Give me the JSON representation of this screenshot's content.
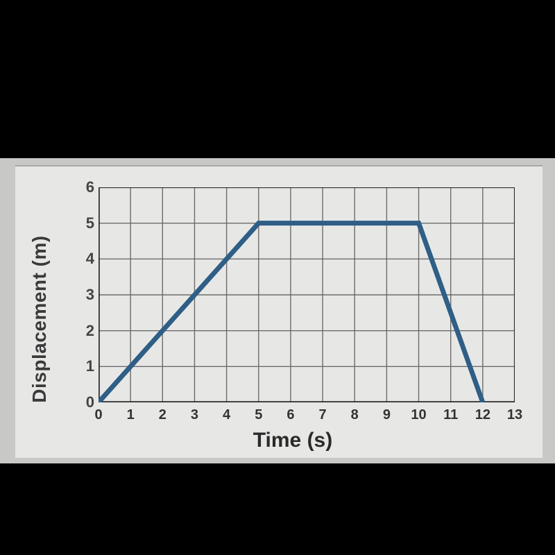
{
  "chart": {
    "type": "line",
    "xlabel": "Time (s)",
    "ylabel": "Displacement (m)",
    "label_fontsize": 28,
    "tick_fontsize": 20,
    "background_color": "#e7e8e6",
    "plot_background": "#e7e8e6",
    "grid_color": "#6b6b6b",
    "axis_color": "#2b2b2b",
    "line_color": "#2f5e86",
    "line_width": 7,
    "xlim": [
      0,
      13
    ],
    "ylim": [
      0,
      6
    ],
    "xtick_step": 1,
    "ytick_step": 1,
    "xticks": [
      "0",
      "1",
      "2",
      "3",
      "4",
      "5",
      "6",
      "7",
      "8",
      "9",
      "10",
      "11",
      "12",
      "13"
    ],
    "yticks": [
      "0",
      "1",
      "2",
      "3",
      "4",
      "5",
      "6"
    ],
    "points": [
      {
        "x": 0,
        "y": 0
      },
      {
        "x": 5,
        "y": 5
      },
      {
        "x": 10,
        "y": 5
      },
      {
        "x": 12,
        "y": 0
      }
    ]
  },
  "page": {
    "black_bg": "#000000",
    "photo_bg": "#c8c9c7"
  }
}
